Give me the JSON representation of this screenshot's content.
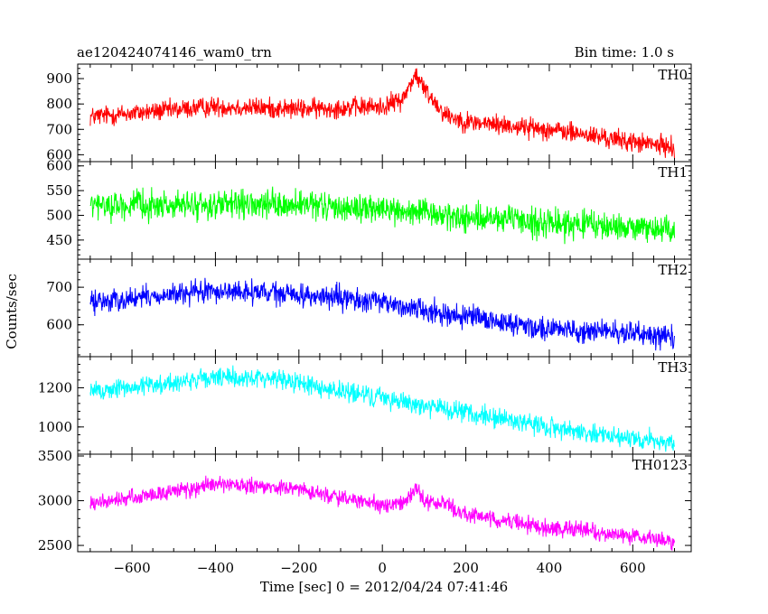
{
  "header": {
    "title": "ae120424074146_wam0_trn",
    "bin_time": "Bin time: 1.0 s"
  },
  "chart_data": {
    "type": "line",
    "title": "ae120424074146_wam0_trn",
    "subtitle": "Bin time: 1.0 s",
    "xlabel": "Time [sec] 0 = 2012/04/24 07:41:46",
    "ylabel": "Counts/sec",
    "xlim": [
      -730,
      740
    ],
    "x_ticks": [
      -600,
      -400,
      -200,
      0,
      200,
      400,
      600
    ],
    "x_tick_labels": [
      "−600",
      "−400",
      "−200",
      "0",
      "200",
      "400",
      "600"
    ],
    "x_data_range": [
      -700,
      700
    ],
    "bin_time_s": 1.0,
    "grid": false,
    "panels": [
      {
        "name": "TH0",
        "color": "#ff0000",
        "ylim": [
          580,
          950
        ],
        "y_ticks": [
          600,
          700,
          800,
          900
        ],
        "noise_amp": 42,
        "trend": [
          [
            -700,
            750
          ],
          [
            -400,
            790
          ],
          [
            -200,
            780
          ],
          [
            0,
            790
          ],
          [
            50,
            820
          ],
          [
            70,
            890
          ],
          [
            80,
            915
          ],
          [
            100,
            860
          ],
          [
            150,
            760
          ],
          [
            200,
            730
          ],
          [
            400,
            700
          ],
          [
            600,
            650
          ],
          [
            700,
            630
          ]
        ]
      },
      {
        "name": "TH1",
        "color": "#00ff00",
        "ylim": [
          415,
          605
        ],
        "y_ticks": [
          450,
          500,
          550,
          600
        ],
        "noise_amp": 30,
        "trend": [
          [
            -700,
            520
          ],
          [
            -200,
            520
          ],
          [
            0,
            512
          ],
          [
            200,
            495
          ],
          [
            400,
            485
          ],
          [
            700,
            470
          ]
        ]
      },
      {
        "name": "TH2",
        "color": "#0000ff",
        "ylim": [
          520,
          770
        ],
        "y_ticks": [
          600,
          700
        ],
        "noise_amp": 32,
        "trend": [
          [
            -700,
            660
          ],
          [
            -400,
            690
          ],
          [
            -200,
            680
          ],
          [
            0,
            660
          ],
          [
            100,
            640
          ],
          [
            200,
            620
          ],
          [
            400,
            590
          ],
          [
            700,
            570
          ]
        ]
      },
      {
        "name": "TH3",
        "color": "#00ffff",
        "ylim": [
          870,
          1350
        ],
        "y_ticks": [
          1000,
          1200
        ],
        "noise_amp": 55,
        "trend": [
          [
            -700,
            1180
          ],
          [
            -400,
            1250
          ],
          [
            -250,
            1250
          ],
          [
            -100,
            1180
          ],
          [
            0,
            1150
          ],
          [
            200,
            1070
          ],
          [
            400,
            1000
          ],
          [
            600,
            940
          ],
          [
            700,
            920
          ]
        ]
      },
      {
        "name": "TH0123",
        "color": "#ff00ff",
        "ylim": [
          2450,
          3500
        ],
        "y_ticks": [
          2500,
          3000,
          3500
        ],
        "noise_amp": 95,
        "trend": [
          [
            -700,
            2960
          ],
          [
            -400,
            3180
          ],
          [
            -200,
            3130
          ],
          [
            0,
            2940
          ],
          [
            60,
            2990
          ],
          [
            80,
            3150
          ],
          [
            100,
            3000
          ],
          [
            150,
            2960
          ],
          [
            200,
            2850
          ],
          [
            400,
            2700
          ],
          [
            600,
            2600
          ],
          [
            700,
            2540
          ]
        ]
      }
    ]
  }
}
